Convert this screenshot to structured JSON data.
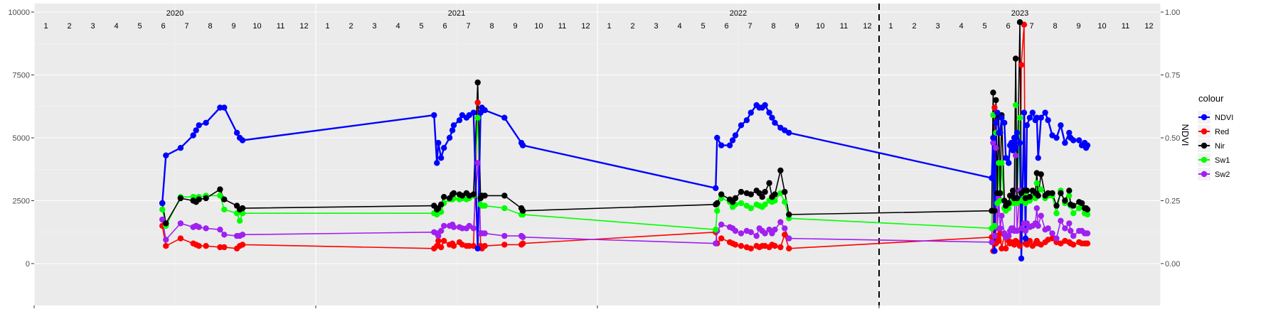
{
  "chart_data": {
    "type": "line",
    "title": "",
    "xlabel": "",
    "ylabel_left": "",
    "ylabel_right": "NDVI",
    "ylim_left": [
      0,
      10000
    ],
    "ylim_right": [
      0,
      1
    ],
    "y_ticks_left": [
      "0",
      "2500",
      "5000",
      "7500",
      "10000"
    ],
    "y_ticks_right": [
      "0.00",
      "0.25",
      "0.50",
      "0.75",
      "1.00"
    ],
    "x_range": [
      2020.0,
      2024.0
    ],
    "years": [
      {
        "label": "2020",
        "x": 2020.0
      },
      {
        "label": "2021",
        "x": 2021.0
      },
      {
        "label": "2022",
        "x": 2022.0
      },
      {
        "label": "2023",
        "x": 2023.0
      }
    ],
    "month_labels": [
      "1",
      "2",
      "3",
      "4",
      "5",
      "6",
      "7",
      "8",
      "9",
      "10",
      "11",
      "12"
    ],
    "vline_x": 2023.0,
    "grid": true,
    "legend": {
      "title": "colour",
      "position": "right"
    },
    "series": [
      {
        "name": "NDVI",
        "color": "#0000FF",
        "axis": "right",
        "x": [
          2020.455,
          2020.468,
          2020.52,
          2020.565,
          2020.575,
          2020.585,
          2020.61,
          2020.66,
          2020.675,
          2020.72,
          2020.73,
          2020.74,
          2021.42,
          2021.43,
          2021.435,
          2021.445,
          2021.455,
          2021.475,
          2021.485,
          2021.49,
          2021.51,
          2021.52,
          2021.535,
          2021.545,
          2021.56,
          2021.575,
          2021.585,
          2021.59,
          2021.6,
          2021.67,
          2021.73,
          2021.735,
          2022.42,
          2022.425,
          2022.44,
          2022.47,
          2022.48,
          2022.49,
          2022.51,
          2022.53,
          2022.545,
          2022.565,
          2022.575,
          2022.585,
          2022.595,
          2022.61,
          2022.62,
          2022.63,
          2022.65,
          2022.665,
          2022.68,
          2023.4,
          2023.405,
          2023.41,
          2023.415,
          2023.42,
          2023.425,
          2023.43,
          2023.435,
          2023.445,
          2023.45,
          2023.46,
          2023.465,
          2023.47,
          2023.475,
          2023.48,
          2023.485,
          2023.49,
          2023.5,
          2023.505,
          2023.515,
          2023.52,
          2023.525,
          2023.535,
          2023.545,
          2023.555,
          2023.56,
          2023.565,
          2023.575,
          2023.59,
          2023.6,
          2023.615,
          2023.63,
          2023.645,
          2023.66,
          2023.675,
          2023.68,
          2023.69,
          2023.71,
          2023.72,
          2023.73,
          2023.735,
          2023.74
        ],
        "y": [
          0.24,
          0.43,
          0.46,
          0.51,
          0.53,
          0.55,
          0.56,
          0.62,
          0.62,
          0.52,
          0.5,
          0.49,
          0.59,
          0.4,
          0.48,
          0.42,
          0.46,
          0.5,
          0.53,
          0.55,
          0.57,
          0.59,
          0.58,
          0.59,
          0.6,
          0.06,
          0.6,
          0.62,
          0.61,
          0.58,
          0.48,
          0.47,
          0.3,
          0.5,
          0.47,
          0.47,
          0.49,
          0.51,
          0.55,
          0.57,
          0.6,
          0.63,
          0.62,
          0.62,
          0.63,
          0.6,
          0.58,
          0.56,
          0.54,
          0.53,
          0.52,
          0.34,
          0.5,
          0.05,
          0.56,
          0.6,
          0.52,
          0.52,
          0.58,
          0.56,
          0.42,
          0.4,
          0.47,
          0.48,
          0.45,
          0.5,
          0.46,
          0.52,
          0.48,
          0.02,
          0.6,
          0.1,
          0.55,
          0.58,
          0.6,
          0.57,
          0.58,
          0.42,
          0.58,
          0.6,
          0.57,
          0.51,
          0.5,
          0.55,
          0.48,
          0.52,
          0.5,
          0.49,
          0.49,
          0.47,
          0.48,
          0.46,
          0.47
        ]
      },
      {
        "name": "Red",
        "color": "#FF0000",
        "axis": "left",
        "x": [
          2020.455,
          2020.468,
          2020.52,
          2020.565,
          2020.575,
          2020.585,
          2020.61,
          2020.66,
          2020.675,
          2020.72,
          2020.73,
          2020.74,
          2021.42,
          2021.43,
          2021.435,
          2021.445,
          2021.455,
          2021.475,
          2021.485,
          2021.49,
          2021.51,
          2021.52,
          2021.535,
          2021.545,
          2021.56,
          2021.575,
          2021.585,
          2021.59,
          2021.6,
          2021.67,
          2021.73,
          2021.735,
          2022.42,
          2022.425,
          2022.44,
          2022.47,
          2022.48,
          2022.49,
          2022.51,
          2022.53,
          2022.545,
          2022.565,
          2022.575,
          2022.585,
          2022.595,
          2022.61,
          2022.62,
          2022.63,
          2022.65,
          2022.665,
          2022.68,
          2023.4,
          2023.405,
          2023.41,
          2023.415,
          2023.42,
          2023.425,
          2023.43,
          2023.435,
          2023.445,
          2023.45,
          2023.46,
          2023.465,
          2023.47,
          2023.475,
          2023.48,
          2023.485,
          2023.49,
          2023.5,
          2023.505,
          2023.515,
          2023.52,
          2023.525,
          2023.535,
          2023.545,
          2023.555,
          2023.56,
          2023.565,
          2023.575,
          2023.59,
          2023.6,
          2023.615,
          2023.63,
          2023.645,
          2023.66,
          2023.675,
          2023.68,
          2023.69,
          2023.71,
          2023.72,
          2023.73,
          2023.735,
          2023.74
        ],
        "y": [
          1500,
          700,
          1000,
          800,
          750,
          700,
          700,
          650,
          650,
          600,
          700,
          750,
          600,
          700,
          900,
          650,
          900,
          750,
          800,
          700,
          850,
          750,
          700,
          700,
          700,
          6400,
          700,
          600,
          700,
          750,
          750,
          800,
          1250,
          800,
          1000,
          850,
          800,
          750,
          700,
          650,
          600,
          700,
          650,
          700,
          700,
          650,
          750,
          700,
          650,
          1150,
          600,
          1050,
          500,
          6200,
          800,
          1100,
          900,
          1200,
          600,
          1150,
          600,
          900,
          800,
          850,
          800,
          750,
          900,
          850,
          700,
          7900,
          9500,
          800,
          750,
          900,
          700,
          800,
          900,
          800,
          750,
          850,
          950,
          1000,
          850,
          800,
          900,
          850,
          800,
          750,
          850,
          800,
          800,
          800,
          800
        ]
      },
      {
        "name": "Nir",
        "color": "#000000",
        "axis": "left",
        "x": [
          2020.455,
          2020.468,
          2020.52,
          2020.565,
          2020.575,
          2020.585,
          2020.61,
          2020.66,
          2020.675,
          2020.72,
          2020.73,
          2020.74,
          2021.42,
          2021.43,
          2021.435,
          2021.445,
          2021.455,
          2021.475,
          2021.485,
          2021.49,
          2021.51,
          2021.52,
          2021.535,
          2021.545,
          2021.56,
          2021.575,
          2021.585,
          2021.59,
          2021.6,
          2021.67,
          2021.73,
          2021.735,
          2022.42,
          2022.425,
          2022.44,
          2022.47,
          2022.48,
          2022.49,
          2022.51,
          2022.53,
          2022.545,
          2022.565,
          2022.575,
          2022.585,
          2022.595,
          2022.61,
          2022.62,
          2022.63,
          2022.65,
          2022.665,
          2022.68,
          2023.4,
          2023.405,
          2023.41,
          2023.415,
          2023.42,
          2023.425,
          2023.43,
          2023.435,
          2023.445,
          2023.45,
          2023.46,
          2023.465,
          2023.47,
          2023.475,
          2023.48,
          2023.485,
          2023.49,
          2023.5,
          2023.505,
          2023.515,
          2023.52,
          2023.525,
          2023.535,
          2023.545,
          2023.555,
          2023.56,
          2023.565,
          2023.575,
          2023.59,
          2023.6,
          2023.615,
          2023.63,
          2023.645,
          2023.66,
          2023.675,
          2023.68,
          2023.69,
          2023.71,
          2023.72,
          2023.73,
          2023.735,
          2023.74
        ],
        "y": [
          2400,
          1600,
          2600,
          2500,
          2450,
          2550,
          2600,
          2950,
          2550,
          2300,
          2150,
          2200,
          2300,
          2150,
          2200,
          2350,
          2650,
          2600,
          2750,
          2800,
          2750,
          2700,
          2800,
          2700,
          2750,
          7200,
          2600,
          2700,
          2700,
          2700,
          2200,
          2100,
          2350,
          2400,
          2750,
          2550,
          2450,
          2600,
          2850,
          2800,
          2750,
          2900,
          2800,
          2650,
          2850,
          3200,
          2650,
          2750,
          3700,
          2850,
          1950,
          2100,
          6800,
          2100,
          6500,
          2800,
          5900,
          2800,
          5900,
          2500,
          2300,
          2400,
          2700,
          2700,
          2900,
          2600,
          8150,
          2600,
          9600,
          2800,
          2900,
          2600,
          2900,
          2650,
          2900,
          2800,
          3600,
          2700,
          3550,
          2700,
          2800,
          2800,
          2300,
          2800,
          2500,
          2900,
          2350,
          2300,
          2450,
          2400,
          2200,
          2200,
          2150
        ]
      },
      {
        "name": "Sw1",
        "color": "#00FF00",
        "axis": "left",
        "x": [
          2020.455,
          2020.468,
          2020.52,
          2020.565,
          2020.575,
          2020.585,
          2020.61,
          2020.66,
          2020.675,
          2020.72,
          2020.73,
          2020.74,
          2021.42,
          2021.43,
          2021.435,
          2021.445,
          2021.455,
          2021.475,
          2021.485,
          2021.49,
          2021.51,
          2021.52,
          2021.535,
          2021.545,
          2021.56,
          2021.575,
          2021.585,
          2021.59,
          2021.6,
          2021.67,
          2021.73,
          2021.735,
          2022.42,
          2022.425,
          2022.44,
          2022.47,
          2022.48,
          2022.49,
          2022.51,
          2022.53,
          2022.545,
          2022.565,
          2022.575,
          2022.585,
          2022.595,
          2022.61,
          2022.62,
          2022.63,
          2022.65,
          2022.665,
          2022.68,
          2023.4,
          2023.405,
          2023.41,
          2023.415,
          2023.42,
          2023.425,
          2023.43,
          2023.435,
          2023.445,
          2023.45,
          2023.46,
          2023.465,
          2023.47,
          2023.475,
          2023.48,
          2023.485,
          2023.49,
          2023.5,
          2023.505,
          2023.515,
          2023.52,
          2023.525,
          2023.535,
          2023.545,
          2023.555,
          2023.56,
          2023.565,
          2023.575,
          2023.59,
          2023.6,
          2023.615,
          2023.63,
          2023.645,
          2023.66,
          2023.675,
          2023.68,
          2023.69,
          2023.71,
          2023.72,
          2023.73,
          2023.735,
          2023.74
        ],
        "y": [
          2150,
          1500,
          2650,
          2650,
          2600,
          2650,
          2700,
          2700,
          2150,
          2000,
          1700,
          2000,
          2000,
          1950,
          2100,
          2050,
          2400,
          2550,
          2550,
          2600,
          2550,
          2600,
          2550,
          2600,
          2700,
          5800,
          2350,
          2300,
          2300,
          2200,
          1950,
          1950,
          1350,
          2100,
          2600,
          2450,
          2250,
          2350,
          2400,
          2300,
          2200,
          2350,
          2300,
          2250,
          2350,
          2500,
          2450,
          2500,
          2800,
          2450,
          1800,
          1400,
          5900,
          1500,
          5200,
          2400,
          4000,
          2500,
          4000,
          2200,
          2100,
          2200,
          2400,
          2400,
          2500,
          2400,
          6300,
          2400,
          5800,
          2500,
          2700,
          2400,
          2700,
          2500,
          2650,
          2600,
          3200,
          2700,
          2950,
          2600,
          2700,
          2700,
          2000,
          2900,
          2400,
          2700,
          2300,
          2000,
          2200,
          2300,
          2000,
          2000,
          1950
        ]
      },
      {
        "name": "Sw2",
        "color": "#A020F0",
        "axis": "left",
        "x": [
          2020.455,
          2020.468,
          2020.52,
          2020.565,
          2020.575,
          2020.585,
          2020.61,
          2020.66,
          2020.675,
          2020.72,
          2020.73,
          2020.74,
          2021.42,
          2021.43,
          2021.435,
          2021.445,
          2021.455,
          2021.475,
          2021.485,
          2021.49,
          2021.51,
          2021.52,
          2021.535,
          2021.545,
          2021.56,
          2021.575,
          2021.585,
          2021.59,
          2021.6,
          2021.67,
          2021.73,
          2021.735,
          2022.42,
          2022.425,
          2022.44,
          2022.47,
          2022.48,
          2022.49,
          2022.51,
          2022.53,
          2022.545,
          2022.565,
          2022.575,
          2022.585,
          2022.595,
          2022.61,
          2022.62,
          2022.63,
          2022.65,
          2022.665,
          2022.68,
          2023.4,
          2023.405,
          2023.41,
          2023.415,
          2023.42,
          2023.425,
          2023.43,
          2023.435,
          2023.445,
          2023.45,
          2023.46,
          2023.465,
          2023.47,
          2023.475,
          2023.48,
          2023.485,
          2023.49,
          2023.5,
          2023.505,
          2023.515,
          2023.52,
          2023.525,
          2023.535,
          2023.545,
          2023.555,
          2023.56,
          2023.565,
          2023.575,
          2023.59,
          2023.6,
          2023.615,
          2023.63,
          2023.645,
          2023.66,
          2023.675,
          2023.68,
          2023.69,
          2023.71,
          2023.72,
          2023.73,
          2023.735,
          2023.74
        ],
        "y": [
          1750,
          950,
          1600,
          1450,
          1500,
          1450,
          1400,
          1350,
          1150,
          1100,
          1100,
          1150,
          1250,
          1200,
          1100,
          1300,
          1500,
          1500,
          1550,
          1450,
          1450,
          1400,
          1400,
          1500,
          1400,
          4000,
          1200,
          1200,
          1200,
          1100,
          1100,
          1050,
          800,
          1300,
          1550,
          1450,
          1400,
          1300,
          1200,
          1300,
          1250,
          1100,
          1400,
          1300,
          1200,
          1350,
          1200,
          1350,
          1650,
          1400,
          1000,
          850,
          4800,
          1100,
          4600,
          1400,
          2600,
          1400,
          1900,
          1200,
          1050,
          1100,
          1300,
          1400,
          1400,
          1300,
          4300,
          1300,
          2900,
          1400,
          1600,
          1300,
          1600,
          1450,
          1500,
          1600,
          2200,
          1500,
          1900,
          1350,
          1400,
          1200,
          1000,
          1700,
          1400,
          1600,
          1300,
          1100,
          1300,
          1300,
          1200,
          1200,
          1200
        ]
      }
    ]
  }
}
